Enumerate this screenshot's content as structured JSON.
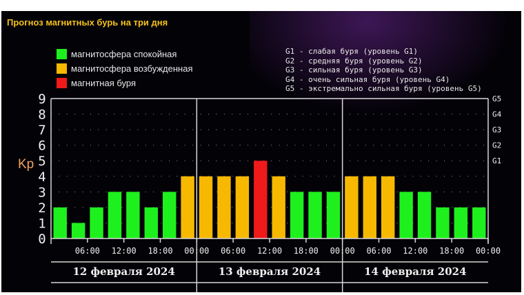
{
  "chart_data": {
    "type": "bar",
    "title": "Прогноз магнитных бурь на три дня",
    "ylabel": "Kp",
    "ylim": [
      0,
      9
    ],
    "y_ticks": [
      "0",
      "1",
      "2",
      "3",
      "4",
      "5",
      "6",
      "7",
      "8",
      "9"
    ],
    "right_ticks": [
      {
        "label": "G1",
        "kp": 5
      },
      {
        "label": "G2",
        "kp": 6
      },
      {
        "label": "G3",
        "kp": 7
      },
      {
        "label": "G4",
        "kp": 8
      },
      {
        "label": "G5",
        "kp": 9
      }
    ],
    "x_tick_labels": [
      "06:00",
      "12:00",
      "18:00",
      "00:00",
      "06:00",
      "12:00",
      "18:00",
      "00:00",
      "06:00",
      "12:00",
      "18:00",
      "00:00"
    ],
    "days": [
      "12 февраля 2024",
      "13 февраля 2024",
      "14 февраля 2024"
    ],
    "values": [
      2,
      1,
      2,
      3,
      3,
      2,
      3,
      4,
      4,
      4,
      4,
      5,
      4,
      3,
      3,
      3,
      4,
      4,
      4,
      3,
      3,
      2,
      2,
      2
    ],
    "colors": {
      "calm": "#1ef01e",
      "excited": "#f7b800",
      "storm": "#f01a1a"
    },
    "legend": [
      {
        "label": "магнитосфера спокойная",
        "key": "calm"
      },
      {
        "label": "магнитосфера возбужденная",
        "key": "excited"
      },
      {
        "label": "магнитная буря",
        "key": "storm"
      }
    ],
    "g_levels": [
      "G1 - слабая буря (уровень G1)",
      "G2 - средняя буря (уровень G2)",
      "G3 - сильная буря (уровень G3)",
      "G4 - очень сильная буря (уровень G4)",
      "G5 - экстремально сильная буря (уровень G5)"
    ],
    "grid": true
  }
}
